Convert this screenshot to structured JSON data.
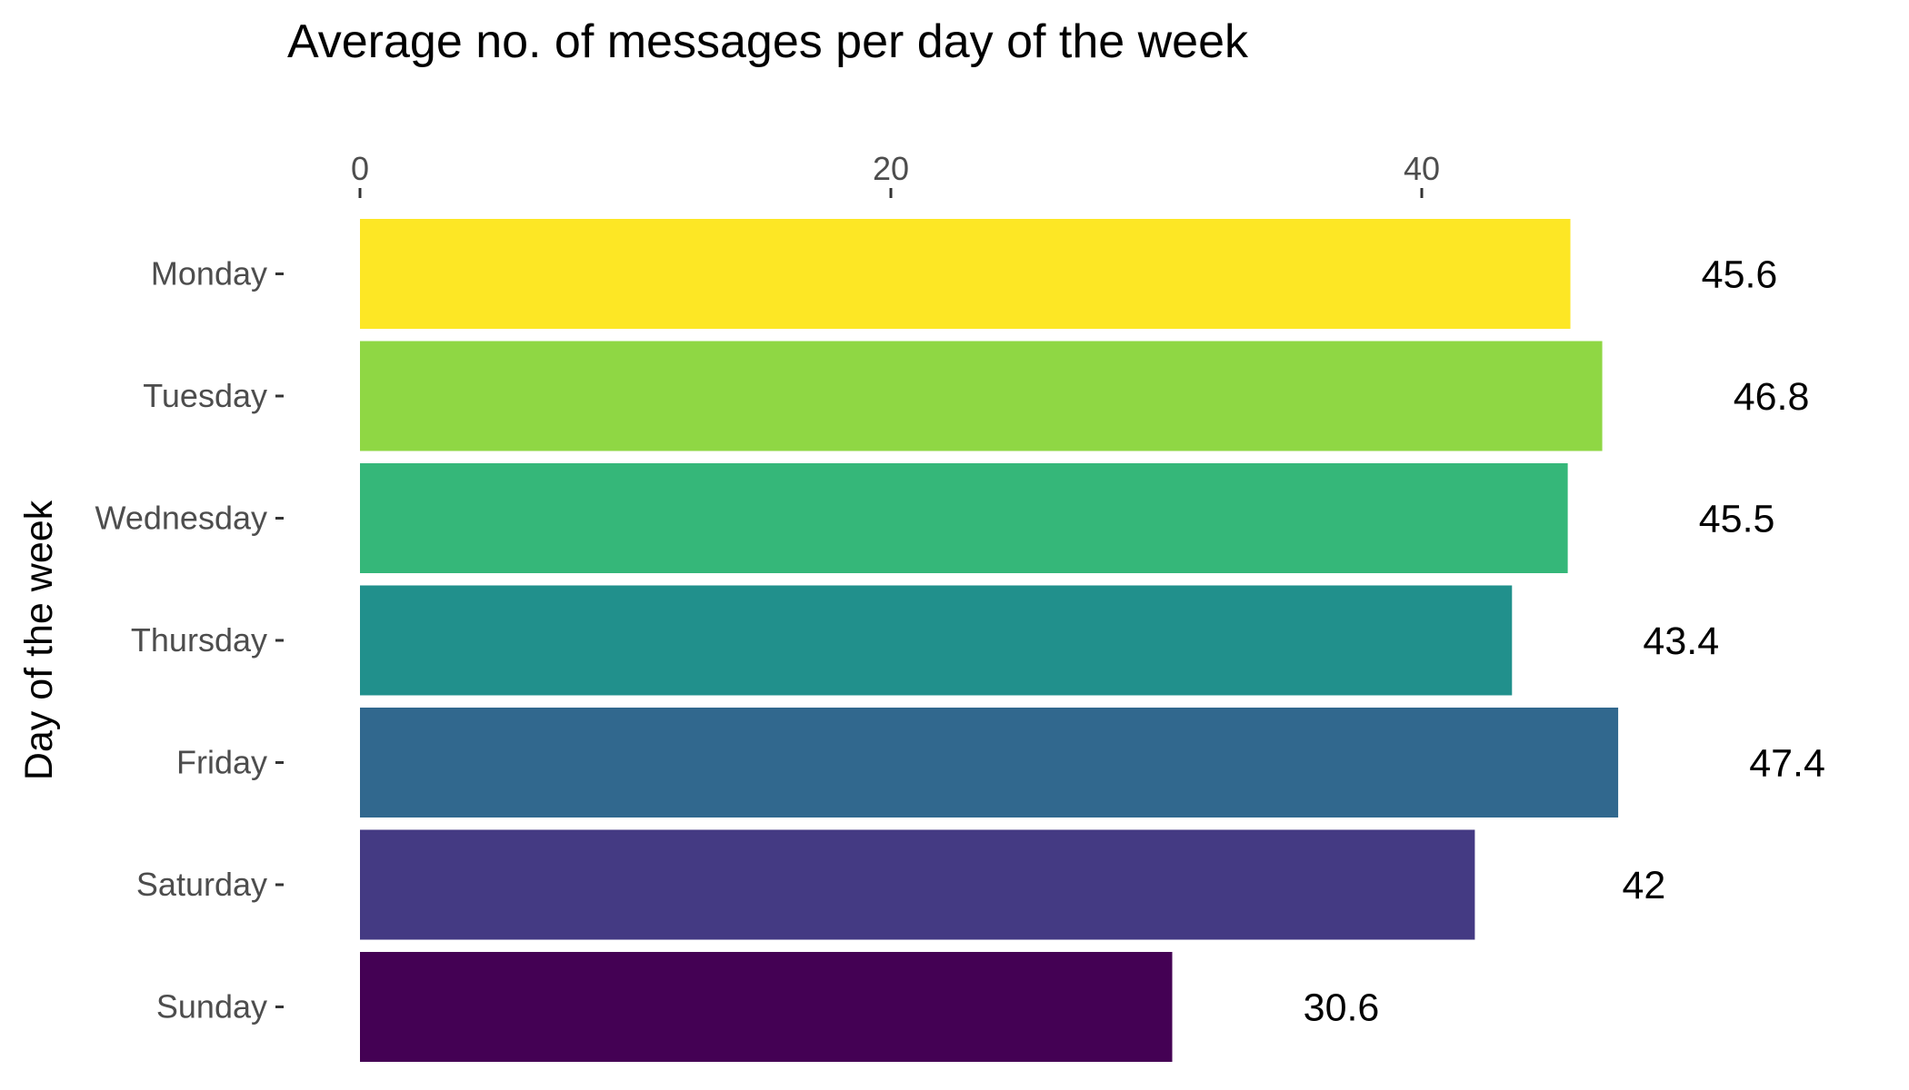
{
  "chart_data": {
    "type": "bar",
    "orientation": "horizontal",
    "title": "Average no. of messages per day of the week",
    "xlabel": "",
    "ylabel": "Day of the week",
    "x_axis_position": "top",
    "xlim": [
      0,
      55
    ],
    "xticks": [
      0,
      20,
      40
    ],
    "grid": false,
    "legend": "none",
    "categories": [
      "Monday",
      "Tuesday",
      "Wednesday",
      "Thursday",
      "Friday",
      "Saturday",
      "Sunday"
    ],
    "values": [
      45.6,
      46.8,
      45.5,
      43.4,
      47.4,
      42,
      30.6
    ],
    "value_labels": [
      "45.6",
      "46.8",
      "45.5",
      "43.4",
      "47.4",
      "42",
      "30.6"
    ],
    "colors": [
      "#FDE725",
      "#8FD744",
      "#35B779",
      "#21908C",
      "#31688E",
      "#443A83",
      "#440154"
    ]
  }
}
